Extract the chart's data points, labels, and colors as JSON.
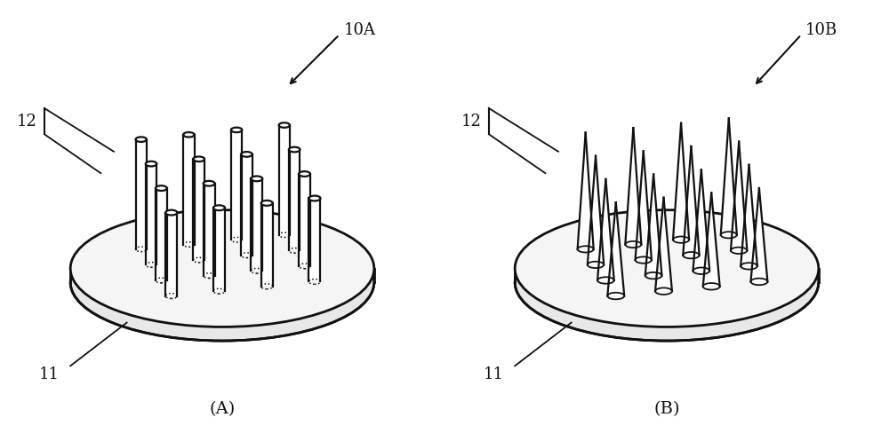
{
  "fig_width": 10.0,
  "fig_height": 4.88,
  "bg_color": "#ffffff",
  "line_color": "#111111",
  "label_A": "(A)",
  "label_B": "(B)",
  "ref_10A": "10A",
  "ref_10B": "10B",
  "ref_11": "11",
  "ref_12": "12",
  "font_size_label": 14,
  "font_size_ref": 13
}
